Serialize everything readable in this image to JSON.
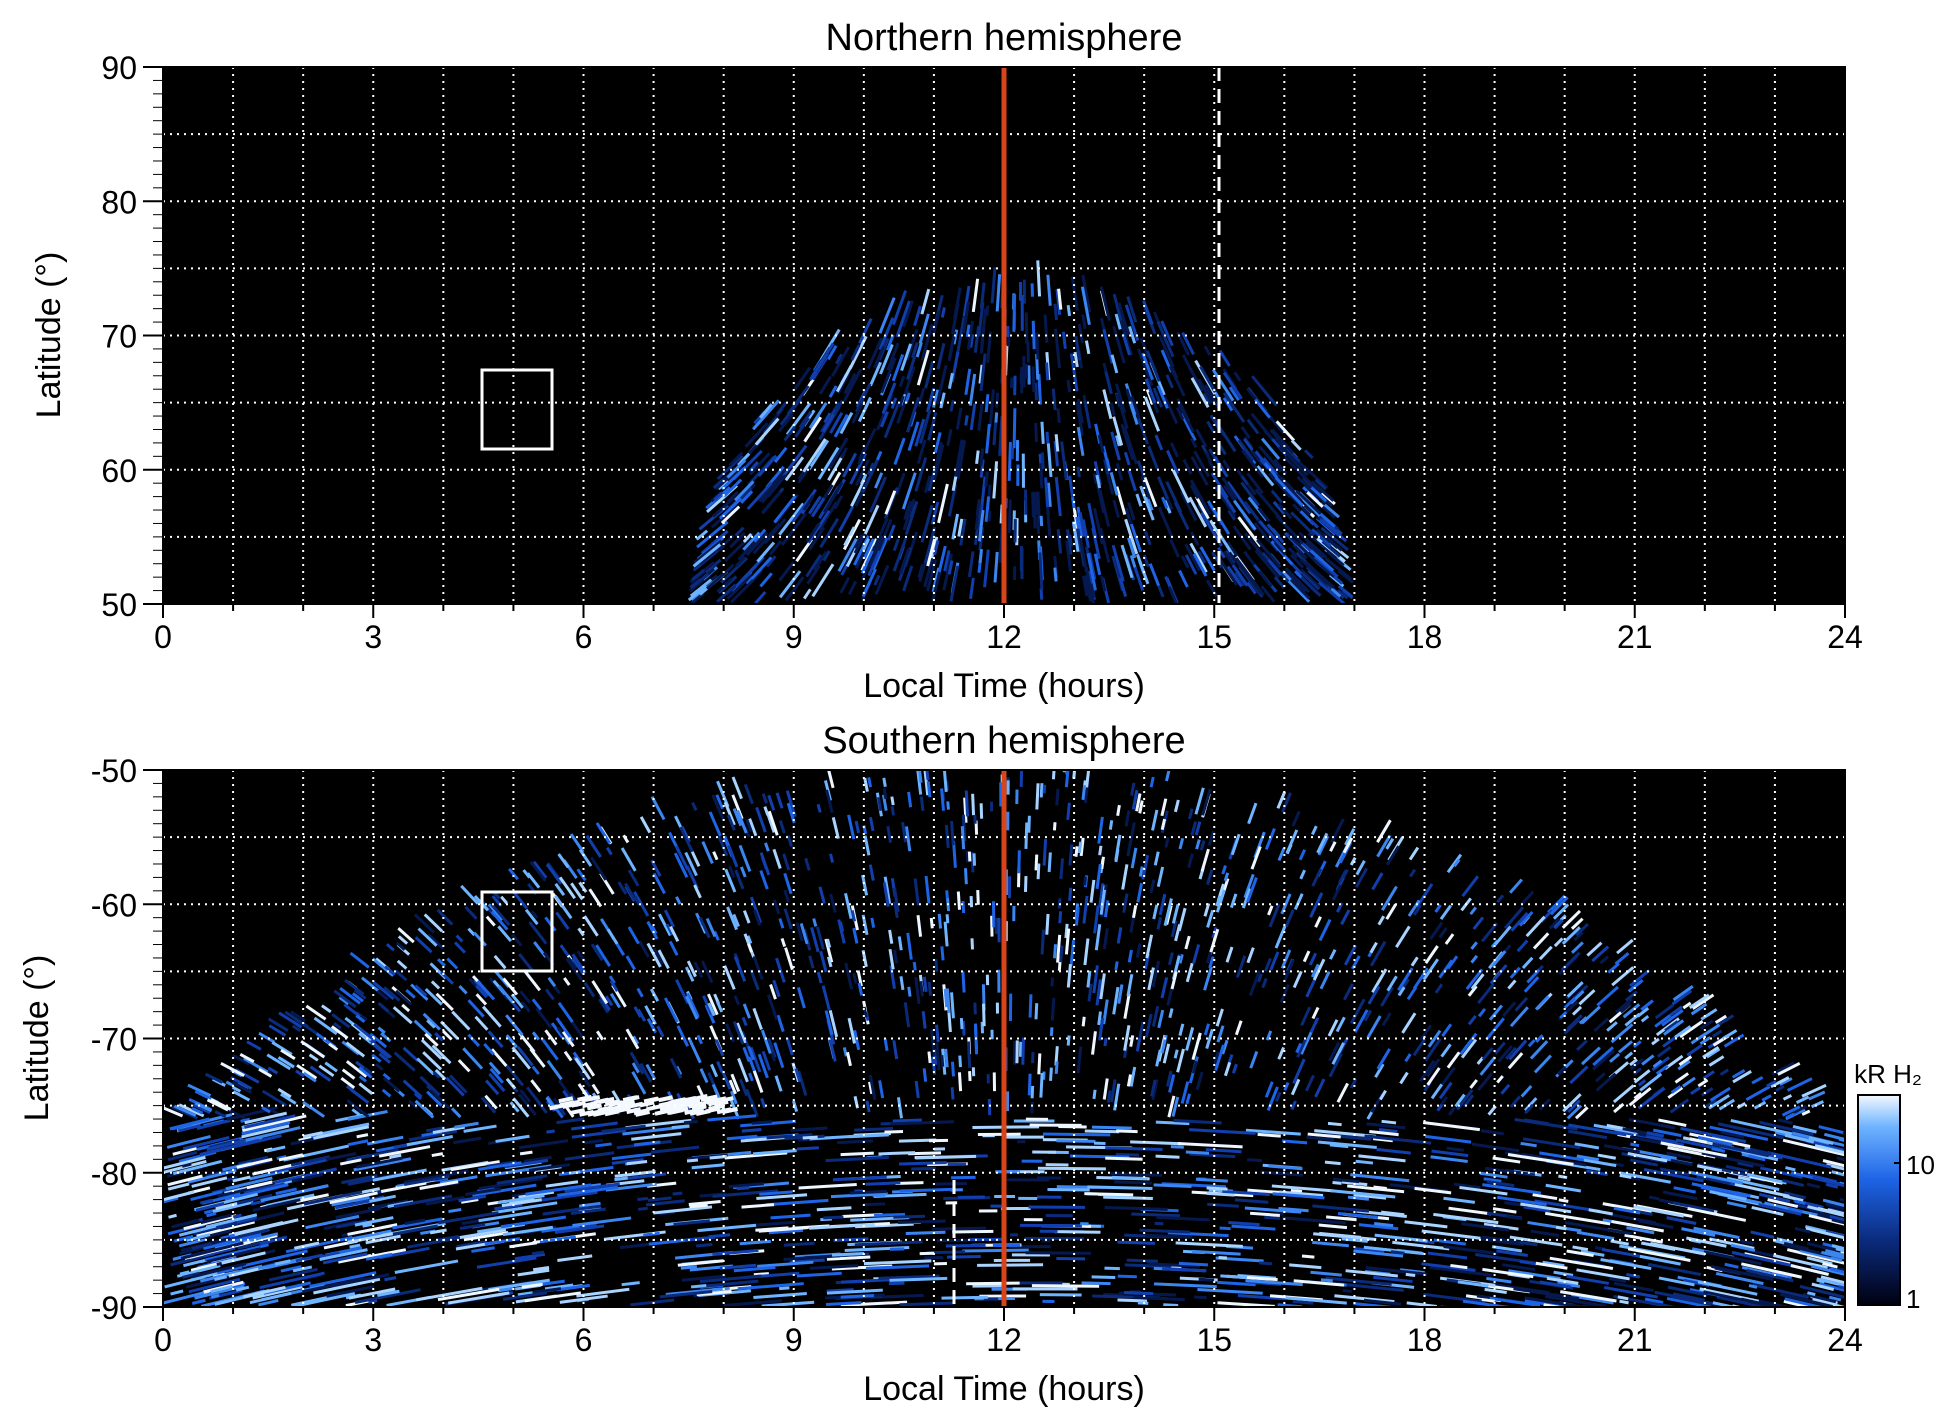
{
  "chart_data": [
    {
      "type": "heatmap",
      "title": "Northern hemisphere",
      "xlabel": "Local Time (hours)",
      "ylabel": "Latitude (°)",
      "xlim": [
        0,
        24
      ],
      "ylim": [
        50,
        90
      ],
      "x_ticks": [
        "0",
        "3",
        "6",
        "9",
        "12",
        "15",
        "18",
        "21",
        "24"
      ],
      "y_ticks": [
        "50",
        "60",
        "70",
        "80",
        "90"
      ],
      "grid": "dotted white, 1 h x 5°",
      "noon_line_lt": 12,
      "dashed_line_lt": 15,
      "box": {
        "lt": [
          4.5,
          5.5
        ],
        "lat": [
          61.5,
          67.5
        ]
      },
      "emission_region": {
        "lt_range": [
          7.5,
          17
        ],
        "lat_peak": 73,
        "lat_edge": 50
      }
    },
    {
      "type": "heatmap",
      "title": "Southern hemisphere",
      "xlabel": "Local Time (hours)",
      "ylabel": "Latitude (°)",
      "xlim": [
        0,
        24
      ],
      "ylim": [
        -90,
        -50
      ],
      "x_ticks": [
        "0",
        "3",
        "6",
        "9",
        "12",
        "15",
        "18",
        "21",
        "24"
      ],
      "y_ticks": [
        "-50",
        "-60",
        "-70",
        "-80",
        "-90"
      ],
      "grid": "dotted white, 1 h x 5°",
      "noon_line_lt": 12,
      "dashed_line_lt": 11.3,
      "box": {
        "lt": [
          4.5,
          5.5
        ],
        "lat": [
          -65,
          -59
        ]
      },
      "colorbar": {
        "label": "kR H₂",
        "ticks": [
          "1",
          "10"
        ],
        "scale": "log",
        "range": [
          1,
          30
        ]
      }
    }
  ],
  "colors": {
    "background": "#000000",
    "noon_line": "#d9451a",
    "grid": "#ffffff",
    "emission_dark": "#0a2a7a",
    "emission_mid": "#1e64e6",
    "emission_bright": "#9fd0ff"
  }
}
